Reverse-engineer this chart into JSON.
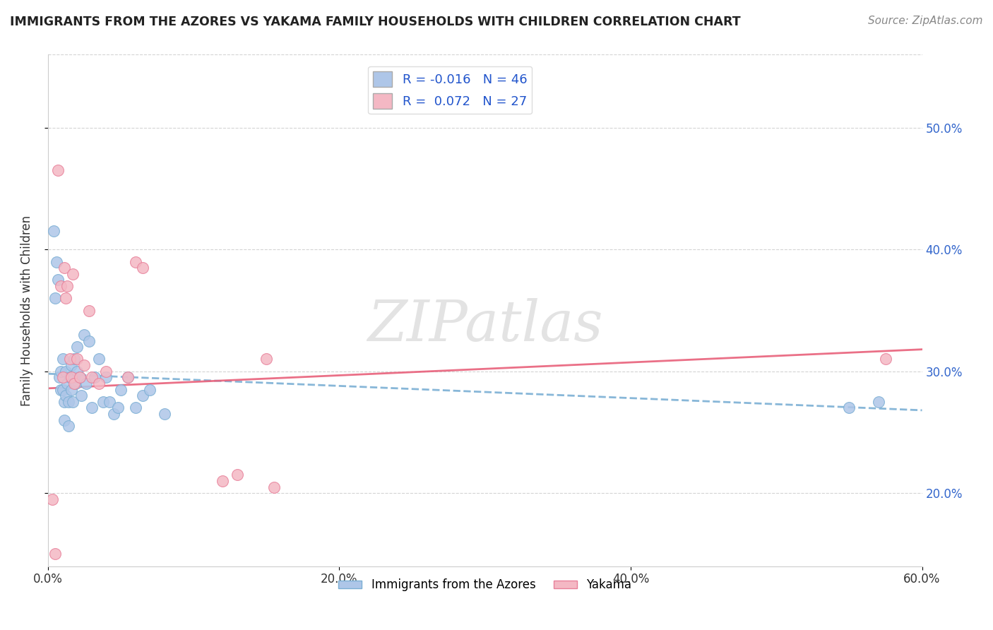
{
  "title": "IMMIGRANTS FROM THE AZORES VS YAKAMA FAMILY HOUSEHOLDS WITH CHILDREN CORRELATION CHART",
  "source_text": "Source: ZipAtlas.com",
  "xlabel": "",
  "ylabel": "Family Households with Children",
  "legend_label1": "Immigrants from the Azores",
  "legend_label2": "Yakama",
  "R1": -0.016,
  "N1": 46,
  "R2": 0.072,
  "N2": 27,
  "xlim": [
    0.0,
    0.6
  ],
  "ylim": [
    0.14,
    0.56
  ],
  "xtick_labels": [
    "0.0%",
    "20.0%",
    "40.0%",
    "60.0%"
  ],
  "xtick_vals": [
    0.0,
    0.2,
    0.4,
    0.6
  ],
  "ytick_labels": [
    "20.0%",
    "30.0%",
    "40.0%",
    "50.0%"
  ],
  "ytick_vals": [
    0.2,
    0.3,
    0.4,
    0.5
  ],
  "color1": "#aec6e8",
  "color1_edge": "#7bafd4",
  "color2": "#f4b8c4",
  "color2_edge": "#e8809a",
  "line1_color": "#7bafd4",
  "line2_color": "#e8607a",
  "watermark": "ZIPatlas",
  "scatter1_x": [
    0.004,
    0.005,
    0.006,
    0.007,
    0.008,
    0.009,
    0.009,
    0.01,
    0.01,
    0.011,
    0.011,
    0.012,
    0.012,
    0.013,
    0.014,
    0.014,
    0.015,
    0.016,
    0.016,
    0.017,
    0.018,
    0.018,
    0.019,
    0.02,
    0.02,
    0.022,
    0.023,
    0.025,
    0.026,
    0.028,
    0.03,
    0.032,
    0.035,
    0.038,
    0.04,
    0.042,
    0.045,
    0.048,
    0.05,
    0.055,
    0.06,
    0.065,
    0.07,
    0.08,
    0.55,
    0.57
  ],
  "scatter1_y": [
    0.415,
    0.36,
    0.39,
    0.375,
    0.295,
    0.3,
    0.285,
    0.31,
    0.285,
    0.275,
    0.26,
    0.3,
    0.28,
    0.29,
    0.255,
    0.275,
    0.295,
    0.285,
    0.305,
    0.275,
    0.295,
    0.31,
    0.29,
    0.3,
    0.32,
    0.295,
    0.28,
    0.33,
    0.29,
    0.325,
    0.27,
    0.295,
    0.31,
    0.275,
    0.295,
    0.275,
    0.265,
    0.27,
    0.285,
    0.295,
    0.27,
    0.28,
    0.285,
    0.265,
    0.27,
    0.275
  ],
  "scatter2_x": [
    0.003,
    0.005,
    0.007,
    0.009,
    0.01,
    0.011,
    0.012,
    0.013,
    0.015,
    0.016,
    0.017,
    0.018,
    0.02,
    0.022,
    0.025,
    0.028,
    0.03,
    0.035,
    0.04,
    0.055,
    0.06,
    0.065,
    0.12,
    0.13,
    0.15,
    0.155,
    0.575
  ],
  "scatter2_y": [
    0.195,
    0.15,
    0.465,
    0.37,
    0.295,
    0.385,
    0.36,
    0.37,
    0.31,
    0.295,
    0.38,
    0.29,
    0.31,
    0.295,
    0.305,
    0.35,
    0.295,
    0.29,
    0.3,
    0.295,
    0.39,
    0.385,
    0.21,
    0.215,
    0.31,
    0.205,
    0.31
  ]
}
